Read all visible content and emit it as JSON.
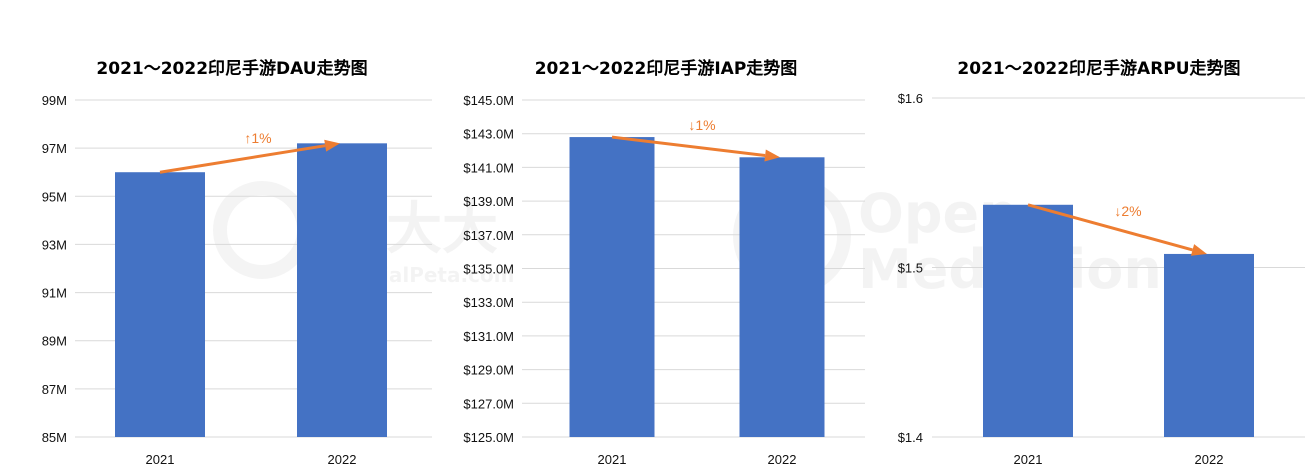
{
  "chart_data": [
    {
      "type": "bar",
      "title": "2021～2022印尼手游DAU走势图",
      "categories": [
        "2021",
        "2022"
      ],
      "values": [
        96.0,
        97.2
      ],
      "ylim": [
        85,
        99
      ],
      "yticks": [
        85,
        87,
        89,
        91,
        93,
        95,
        97,
        99
      ],
      "ytick_labels": [
        "85M",
        "87M",
        "89M",
        "91M",
        "93M",
        "95M",
        "97M",
        "99M"
      ],
      "bar_color": "#4472C4",
      "grid": true,
      "trend_arrow": {
        "direction": "up",
        "label": "↑1%",
        "color": "#ED7D31"
      }
    },
    {
      "type": "bar",
      "title": "2021～2022印尼手游IAP走势图",
      "categories": [
        "2021",
        "2022"
      ],
      "values": [
        142.8,
        141.6
      ],
      "ylim": [
        125,
        145
      ],
      "yticks": [
        125,
        127,
        129,
        131,
        133,
        135,
        137,
        139,
        141,
        143,
        145
      ],
      "ytick_labels": [
        "$125.0M",
        "$127.0M",
        "$129.0M",
        "$131.0M",
        "$133.0M",
        "$135.0M",
        "$137.0M",
        "$139.0M",
        "$141.0M",
        "$143.0M",
        "$145.0M"
      ],
      "bar_color": "#4472C4",
      "grid": true,
      "trend_arrow": {
        "direction": "down",
        "label": "↓1%",
        "color": "#ED7D31"
      }
    },
    {
      "type": "bar",
      "title": "2021～2022印尼手游ARPU走势图",
      "categories": [
        "2021",
        "2022"
      ],
      "values": [
        1.537,
        1.508
      ],
      "ylim": [
        1.4,
        1.6
      ],
      "yticks": [
        1.4,
        1.5,
        1.6
      ],
      "ytick_labels": [
        "$1.4",
        "$1.5",
        "$1.6"
      ],
      "bar_color": "#4472C4",
      "grid": true,
      "trend_arrow": {
        "direction": "down",
        "label": "↓2%",
        "color": "#ED7D31"
      }
    }
  ],
  "watermark": {
    "left_text": "广大大",
    "left_sub": "SocialPeta.com",
    "cross": "✕",
    "right_line1": "Open",
    "right_line2": "Mediation"
  }
}
